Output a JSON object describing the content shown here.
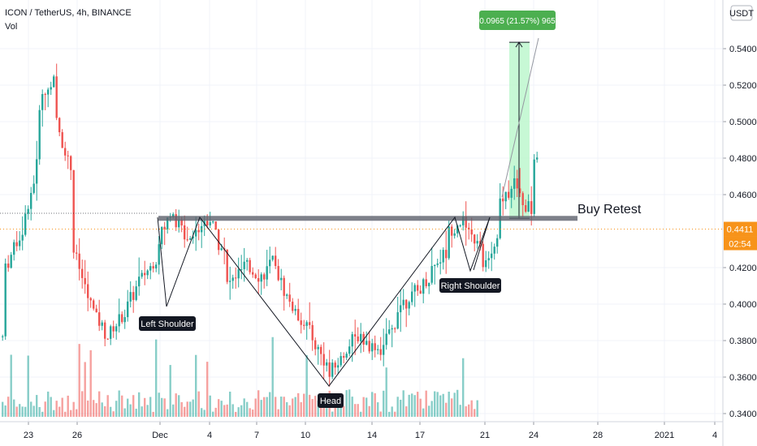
{
  "header": {
    "title": "ICON / TetherUS, 4h, BINANCE",
    "volume_label": "Vol"
  },
  "price_axis": {
    "currency": "USDT",
    "ticks": [
      "0.5400",
      "0.5200",
      "0.5000",
      "0.4800",
      "0.4600",
      "0.4200",
      "0.4000",
      "0.3800",
      "0.3600",
      "0.3400"
    ],
    "last_price": "0.4411",
    "countdown": "02:54"
  },
  "time_axis": {
    "ticks": [
      "23",
      "26",
      "Dec",
      "4",
      "7",
      "10",
      "14",
      "17",
      "21",
      "24",
      "28",
      "2021",
      "4"
    ]
  },
  "annotations": {
    "left_shoulder": "Left Shoulder",
    "head": "Head",
    "right_shoulder": "Right Shoulder",
    "buy_retest": "Buy Retest",
    "measure": "0.0965 (21.57%) 965"
  },
  "colors": {
    "up": "#26a69a",
    "down": "#ef5350",
    "label_bg": "#131722",
    "measure_green": "#4caf50",
    "zone_green": "#b9f6ca",
    "last_price_orange": "#f7931a"
  },
  "chart_data": {
    "type": "candlestick",
    "symbol": "ICON / TetherUS",
    "interval": "4h",
    "exchange": "BINANCE",
    "ylim": [
      0.337,
      0.556
    ],
    "neckline": 0.447,
    "pattern_points": [
      {
        "label": "Left Shoulder",
        "x": "Dec 2",
        "y": 0.4
      },
      {
        "label": "Head",
        "x": "Dec 11",
        "y": 0.357
      },
      {
        "label": "Right Shoulder",
        "x": "Dec 20",
        "y": 0.419
      }
    ],
    "measured_move": {
      "from": 0.447,
      "to": 0.5435,
      "change": 0.0965,
      "percent": 21.57,
      "bars": 965
    },
    "price_path": [
      [
        "Nov 21",
        0.405
      ],
      [
        "Nov 22",
        0.378
      ],
      [
        "Nov 22",
        0.42
      ],
      [
        "Nov 23",
        0.44
      ],
      [
        "Nov 24",
        0.48
      ],
      [
        "Nov 24",
        0.51
      ],
      [
        "Nov 25",
        0.525
      ],
      [
        "Nov 25",
        0.5
      ],
      [
        "Nov 26",
        0.47
      ],
      [
        "Nov 26",
        0.43
      ],
      [
        "Nov 27",
        0.4
      ],
      [
        "Nov 28",
        0.382
      ],
      [
        "Nov 29",
        0.395
      ],
      [
        "Nov 30",
        0.415
      ],
      [
        "Dec 1",
        0.425
      ],
      [
        "Dec 1",
        0.435
      ],
      [
        "Dec 2",
        0.455
      ],
      [
        "Dec 2",
        0.445
      ],
      [
        "Dec 3",
        0.435
      ],
      [
        "Dec 3",
        0.44
      ],
      [
        "Dec 4",
        0.447
      ],
      [
        "Dec 5",
        0.425
      ],
      [
        "Dec 5",
        0.41
      ],
      [
        "Dec 6",
        0.42
      ],
      [
        "Dec 7",
        0.415
      ],
      [
        "Dec 8",
        0.425
      ],
      [
        "Dec 8",
        0.415
      ],
      [
        "Dec 9",
        0.395
      ],
      [
        "Dec 10",
        0.385
      ],
      [
        "Dec 10",
        0.38
      ],
      [
        "Dec 11",
        0.365
      ],
      [
        "Dec 11",
        0.36
      ],
      [
        "Dec 12",
        0.375
      ],
      [
        "Dec 13",
        0.385
      ],
      [
        "Dec 13",
        0.38
      ],
      [
        "Dec 14",
        0.375
      ],
      [
        "Dec 15",
        0.39
      ],
      [
        "Dec 15",
        0.4
      ],
      [
        "Dec 16",
        0.405
      ],
      [
        "Dec 17",
        0.415
      ],
      [
        "Dec 17",
        0.42
      ],
      [
        "Dec 18",
        0.43
      ],
      [
        "Dec 18",
        0.44
      ],
      [
        "Dec 19",
        0.447
      ],
      [
        "Dec 19",
        0.44
      ],
      [
        "Dec 20",
        0.43
      ],
      [
        "Dec 20",
        0.42
      ],
      [
        "Dec 21",
        0.435
      ],
      [
        "Dec 21",
        0.455
      ],
      [
        "Dec 22",
        0.47
      ],
      [
        "Dec 22",
        0.46
      ],
      [
        "Dec 23",
        0.45
      ],
      [
        "Dec 23",
        0.465
      ],
      [
        "Dec 23",
        0.48
      ],
      [
        "Dec 24",
        0.5
      ],
      [
        "Dec 24",
        0.52
      ],
      [
        "Dec 24",
        0.535
      ]
    ]
  }
}
